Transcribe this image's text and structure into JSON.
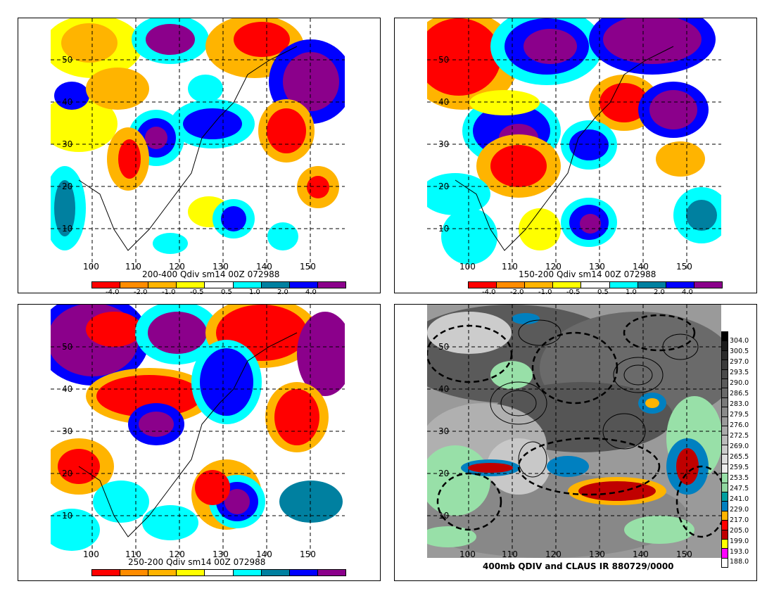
{
  "colors": {
    "qdiv_scale": [
      "#ff0000",
      "#ff8c00",
      "#ffb400",
      "#ffff00",
      "#ffffff",
      "#00ffff",
      "#0080a0",
      "#0000ff",
      "#8b008b"
    ],
    "claus_scale": [
      "#000000",
      "#1a1a1a",
      "#262626",
      "#333333",
      "#404040",
      "#4d4d4d",
      "#595959",
      "#666666",
      "#737373",
      "#808080",
      "#8c8c8c",
      "#999999",
      "#a6a6a6",
      "#b3b3b3",
      "#c0c0c0",
      "#cccccc",
      "#d9d9d9",
      "#98e0a8",
      "#90d8a0",
      "#00a0a0",
      "#0080c0",
      "#ffb400",
      "#ff0000",
      "#c00000",
      "#ffff00",
      "#ff00ff",
      "#ffffff"
    ]
  },
  "map_axes": {
    "lat_labels": [
      "50",
      "40",
      "30",
      "20",
      "10"
    ],
    "lon_labels": [
      "100",
      "110",
      "120",
      "130",
      "140",
      "150"
    ]
  },
  "panels": [
    {
      "id": "top-left",
      "caption": "200-400 Qdiv sm14 00Z 072988",
      "colorbar_ticks": [
        "-4.0",
        "-2.0",
        "-1.0",
        "-0.5",
        "0.5",
        "1.0",
        "2.0",
        "4.0"
      ]
    },
    {
      "id": "top-right",
      "caption": "150-200 Qdiv sm14 00Z 072988",
      "colorbar_ticks": [
        "-4.0",
        "-2.0",
        "-1.0",
        "-0.5",
        "0.5",
        "1.0",
        "2.0",
        "4.0"
      ]
    },
    {
      "id": "bottom-left",
      "caption": "250-200 Qdiv sm14 00Z 072988",
      "colorbar_ticks": []
    },
    {
      "id": "bottom-right",
      "caption": "400mb QDIV and CLAUS IR 880729/0000",
      "colorbar_ticks": [
        "304.0",
        "300.5",
        "297.0",
        "293.5",
        "290.0",
        "286.5",
        "283.0",
        "279.5",
        "276.0",
        "272.5",
        "269.0",
        "265.5",
        "259.5",
        "253.5",
        "247.5",
        "241.0",
        "229.0",
        "217.0",
        "205.0",
        "199.0",
        "193.0",
        "188.0"
      ]
    }
  ]
}
